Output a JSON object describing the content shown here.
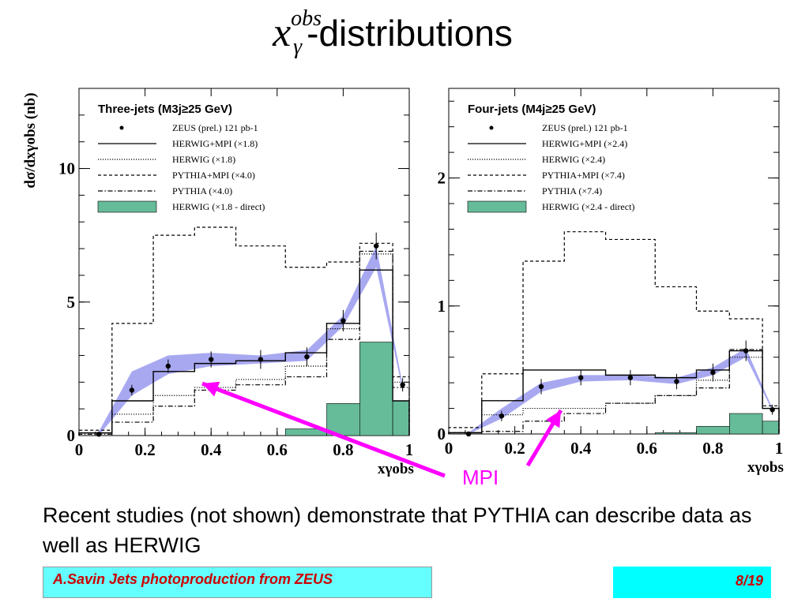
{
  "slide": {
    "title_symbol": "x",
    "title_sup": "obs",
    "title_sub": "γ",
    "title_word": "-distributions",
    "mpi_label": "MPI",
    "note": "Recent studies (not shown) demonstrate that PYTHIA can describe data as well as HERWIG",
    "footer_left": "A.Savin Jets photoproduction from ZEUS",
    "footer_right": "8/19"
  },
  "colors": {
    "band": "#9999ee",
    "direct_fill": "#66bb99",
    "arrow": "#ff00ff"
  },
  "chart_data": [
    {
      "type": "line",
      "title": "Three-jets (M3j≥25 GeV)",
      "ylabel": "dσ/dxγobs (nb)",
      "xlabel": "xγobs",
      "xlim": [
        0,
        1
      ],
      "ylim": [
        0,
        13
      ],
      "xticks": [
        0,
        0.2,
        0.4,
        0.6,
        0.8,
        1
      ],
      "yticks": [
        0,
        5,
        10
      ],
      "bin_edges": [
        0,
        0.1,
        0.225,
        0.35,
        0.475,
        0.625,
        0.75,
        0.85,
        0.95,
        1.0
      ],
      "legend": [
        {
          "style": "marker",
          "label": "ZEUS (prel.) 121 pb-1"
        },
        {
          "style": "solid",
          "label": "HERWIG+MPI (×1.8)"
        },
        {
          "style": "dotted",
          "label": "HERWIG (×1.8)"
        },
        {
          "style": "dashed",
          "label": "PYTHIA+MPI (×4.0)"
        },
        {
          "style": "dashdot",
          "label": "PYTHIA (×4.0)"
        },
        {
          "style": "box",
          "label": "HERWIG (×1.8 - direct)"
        }
      ],
      "series": [
        {
          "name": "ZEUS (prel.) 121 pb-1",
          "type": "points",
          "x": [
            0.06,
            0.16,
            0.27,
            0.4,
            0.55,
            0.69,
            0.8,
            0.9,
            0.98
          ],
          "y": [
            0.05,
            1.7,
            2.6,
            2.85,
            2.85,
            2.95,
            4.3,
            7.1,
            1.9
          ],
          "err": [
            0.05,
            0.2,
            0.25,
            0.3,
            0.35,
            0.35,
            0.4,
            0.5,
            0.25
          ]
        },
        {
          "name": "HERWIG+MPI (×1.8)",
          "type": "hist",
          "values": [
            0.1,
            1.3,
            2.4,
            2.7,
            2.8,
            3.1,
            4.2,
            6.2,
            1.3
          ]
        },
        {
          "name": "HERWIG (×1.8)",
          "type": "hist",
          "values": [
            0.1,
            0.8,
            1.5,
            1.8,
            2.1,
            2.6,
            4.0,
            6.8,
            2.0
          ]
        },
        {
          "name": "PYTHIA+MPI (×4.0)",
          "type": "hist",
          "values": [
            0.2,
            4.2,
            7.5,
            7.8,
            7.1,
            6.3,
            6.5,
            7.2,
            2.2
          ]
        },
        {
          "name": "PYTHIA (×4.0)",
          "type": "hist",
          "values": [
            0.05,
            0.5,
            1.1,
            1.7,
            1.9,
            2.2,
            3.6,
            6.9,
            1.8
          ]
        },
        {
          "name": "HERWIG (×1.8 - direct)",
          "type": "filled",
          "values": [
            0,
            0,
            0,
            0,
            0,
            0.25,
            1.2,
            3.5,
            1.3
          ]
        },
        {
          "name": "band",
          "type": "band",
          "x": [
            0.06,
            0.16,
            0.27,
            0.4,
            0.55,
            0.69,
            0.8,
            0.9,
            0.98
          ],
          "lo": [
            0.0,
            1.5,
            2.3,
            2.6,
            2.7,
            2.8,
            4.1,
            6.3,
            1.7
          ],
          "hi": [
            0.15,
            2.4,
            3.0,
            3.1,
            3.0,
            3.2,
            4.5,
            7.1,
            1.9
          ]
        }
      ]
    },
    {
      "type": "line",
      "title": "Four-jets (M4j≥25 GeV)",
      "xlabel": "xγobs",
      "xlim": [
        0,
        1
      ],
      "ylim": [
        0,
        2.7
      ],
      "xticks": [
        0,
        0.2,
        0.4,
        0.6,
        0.8,
        1
      ],
      "yticks": [
        0,
        1,
        2
      ],
      "bin_edges": [
        0,
        0.1,
        0.225,
        0.35,
        0.475,
        0.625,
        0.75,
        0.85,
        0.95,
        1.0
      ],
      "legend": [
        {
          "style": "marker",
          "label": "ZEUS (prel.) 121 pb-1"
        },
        {
          "style": "solid",
          "label": "HERWIG+MPI (×2.4)"
        },
        {
          "style": "dotted",
          "label": "HERWIG (×2.4)"
        },
        {
          "style": "dashed",
          "label": "PYTHIA+MPI (×7.4)"
        },
        {
          "style": "dashdot",
          "label": "PYTHIA (×7.4)"
        },
        {
          "style": "box",
          "label": "HERWIG (×2.4 - direct)"
        }
      ],
      "series": [
        {
          "name": "ZEUS (prel.) 121 pb-1",
          "type": "points",
          "x": [
            0.06,
            0.16,
            0.28,
            0.4,
            0.55,
            0.69,
            0.8,
            0.9,
            0.98
          ],
          "y": [
            0.0,
            0.14,
            0.37,
            0.44,
            0.44,
            0.41,
            0.48,
            0.65,
            0.19
          ],
          "err": [
            0.01,
            0.04,
            0.06,
            0.06,
            0.06,
            0.06,
            0.07,
            0.08,
            0.04
          ]
        },
        {
          "name": "HERWIG+MPI (×2.4)",
          "type": "hist",
          "values": [
            0.01,
            0.26,
            0.5,
            0.5,
            0.46,
            0.44,
            0.5,
            0.65,
            0.2
          ]
        },
        {
          "name": "HERWIG (×2.4)",
          "type": "hist",
          "values": [
            0.01,
            0.15,
            0.2,
            0.2,
            0.24,
            0.3,
            0.42,
            0.6,
            0.2
          ]
        },
        {
          "name": "PYTHIA+MPI (×7.4)",
          "type": "hist",
          "values": [
            0.05,
            0.47,
            1.35,
            1.58,
            1.52,
            1.15,
            0.96,
            0.9,
            0.22
          ]
        },
        {
          "name": "PYTHIA (×7.4)",
          "type": "hist",
          "values": [
            0.01,
            0.02,
            0.1,
            0.16,
            0.24,
            0.3,
            0.36,
            0.66,
            0.2
          ]
        },
        {
          "name": "HERWIG (×2.4 - direct)",
          "type": "filled",
          "values": [
            0,
            0,
            0,
            0,
            0,
            0.01,
            0.06,
            0.16,
            0.1
          ]
        },
        {
          "name": "band",
          "type": "band",
          "x": [
            0.06,
            0.16,
            0.28,
            0.4,
            0.55,
            0.69,
            0.8,
            0.9,
            0.98
          ],
          "lo": [
            0.0,
            0.12,
            0.33,
            0.41,
            0.42,
            0.39,
            0.46,
            0.6,
            0.18
          ],
          "hi": [
            0.01,
            0.2,
            0.4,
            0.46,
            0.46,
            0.44,
            0.52,
            0.67,
            0.2
          ]
        }
      ]
    }
  ]
}
